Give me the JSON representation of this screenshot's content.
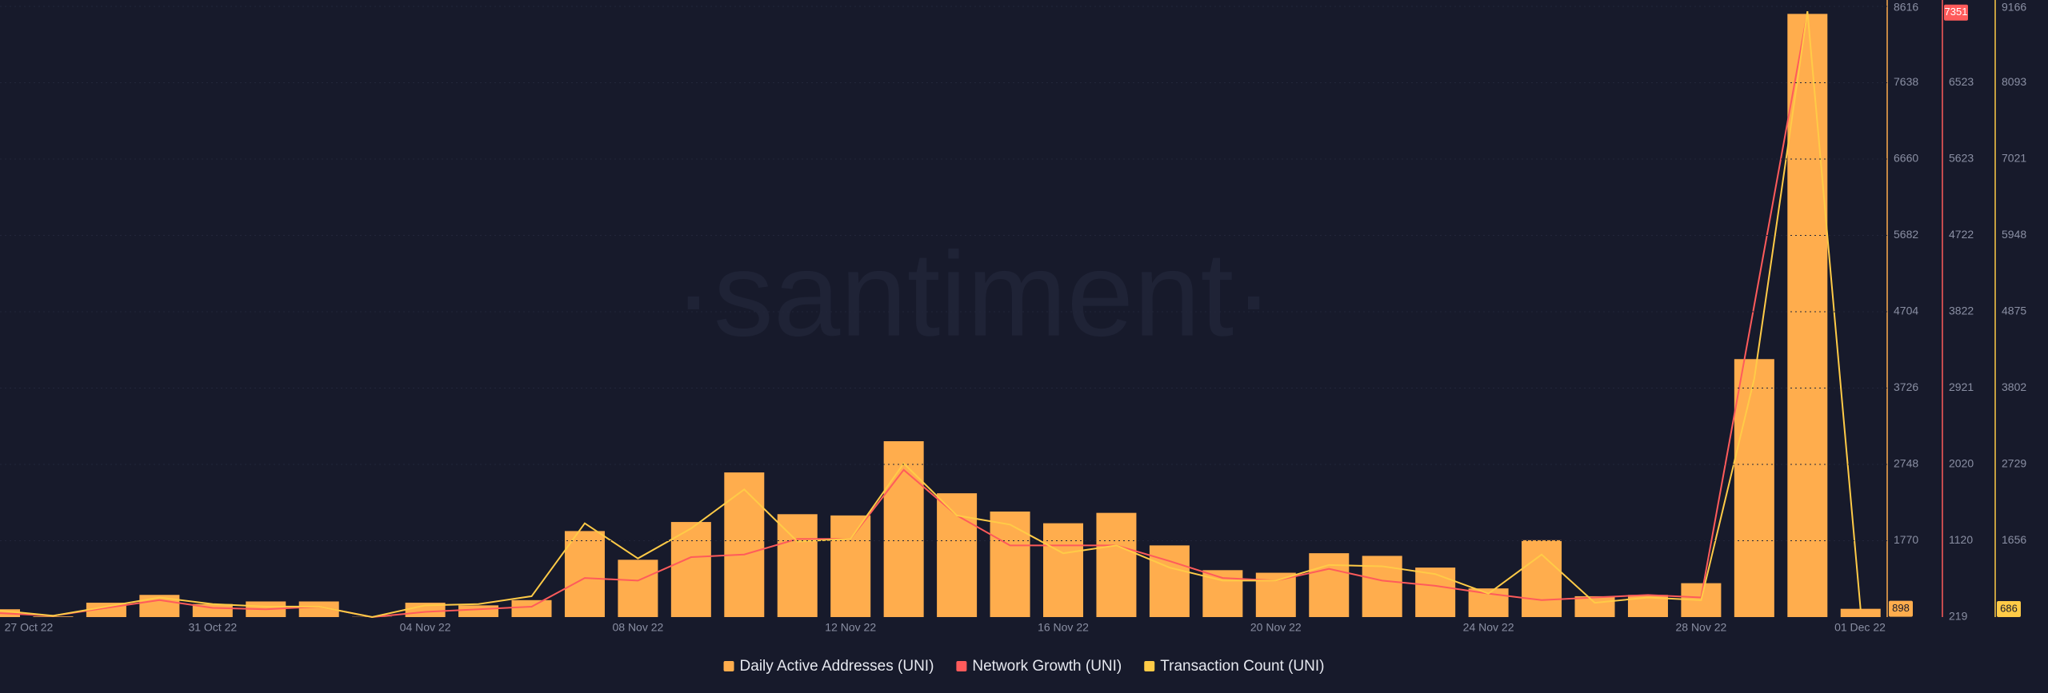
{
  "chart_data": {
    "type": "bar_line",
    "watermark": "·santiment·",
    "categories": [
      "27 Oct 22",
      null,
      null,
      null,
      "31 Oct 22",
      null,
      null,
      null,
      "04 Nov 22",
      null,
      null,
      null,
      "08 Nov 22",
      null,
      null,
      null,
      "12 Nov 22",
      null,
      null,
      null,
      "16 Nov 22",
      null,
      null,
      null,
      "20 Nov 22",
      null,
      null,
      null,
      "24 Nov 22",
      null,
      null,
      null,
      "28 Nov 22",
      null,
      null,
      "01 Dec 22"
    ],
    "ylim": [
      792,
      8616
    ],
    "yticks": [
      1770,
      2748,
      3726,
      4704,
      5682,
      6660,
      7638,
      8616
    ],
    "y2lim": [
      219,
      7424
    ],
    "y2ticks": [
      219,
      1120,
      2020,
      2921,
      3822,
      4722,
      5623,
      6523
    ],
    "y3lim": [
      583,
      9166
    ],
    "y3ticks": [
      1656,
      2729,
      3802,
      4875,
      5948,
      7021,
      8093,
      9166
    ],
    "series": [
      {
        "name": "Daily Active Addresses (UNI)",
        "color": "#ffad4d",
        "type": "bar",
        "axis": "y",
        "values": [
          892,
          800,
          976,
          1076,
          959,
          992,
          992,
          795,
          976,
          942,
          1009,
          1894,
          1526,
          2010,
          2645,
          2110,
          2094,
          3045,
          2378,
          2144,
          1994,
          2127,
          1710,
          1393,
          1360,
          1610,
          1576,
          1426,
          1159,
          1777,
          1059,
          1076,
          1226,
          4097,
          8520,
          898
        ]
      },
      {
        "name": "Network Growth (UNI)",
        "color": "#ff5b5b",
        "type": "line",
        "axis": "y2",
        "values": [
          265,
          234,
          327,
          419,
          327,
          311,
          342,
          219,
          280,
          311,
          342,
          680,
          649,
          926,
          957,
          1141,
          1141,
          1956,
          1418,
          1064,
          1064,
          1064,
          880,
          680,
          649,
          788,
          649,
          588,
          496,
          419,
          450,
          480,
          450,
          3900,
          7351,
          null
        ]
      },
      {
        "name": "Transaction Count (UNI)",
        "color": "#ffcb47",
        "type": "line",
        "axis": "y3",
        "values": [
          675,
          601,
          730,
          858,
          766,
          730,
          730,
          583,
          748,
          766,
          876,
          1901,
          1407,
          1828,
          2377,
          1645,
          1682,
          2743,
          2011,
          1883,
          1480,
          1590,
          1279,
          1096,
          1096,
          1315,
          1297,
          1187,
          913,
          1462,
          784,
          858,
          821,
          3934,
          9097,
          686
        ]
      }
    ]
  }
}
